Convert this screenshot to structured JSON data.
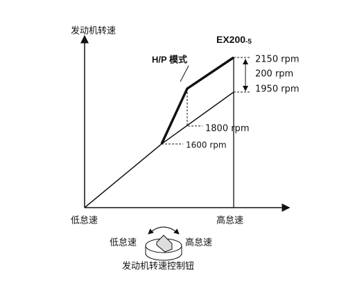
{
  "y_axis_label": "发动机转速",
  "model": {
    "name": "EX200",
    "suffix": "-5"
  },
  "mode_label": "H/P 模式",
  "rpm_labels": [
    "2150 rpm",
    "200 rpm",
    "1950 rpm",
    "1800 rpm",
    "1600 rpm"
  ],
  "x_axis_labels": [
    "低怠速",
    "高怠速"
  ],
  "dial": {
    "left": "低怠速",
    "right": "高怠速",
    "caption": "发动机转速控制钮"
  }
}
